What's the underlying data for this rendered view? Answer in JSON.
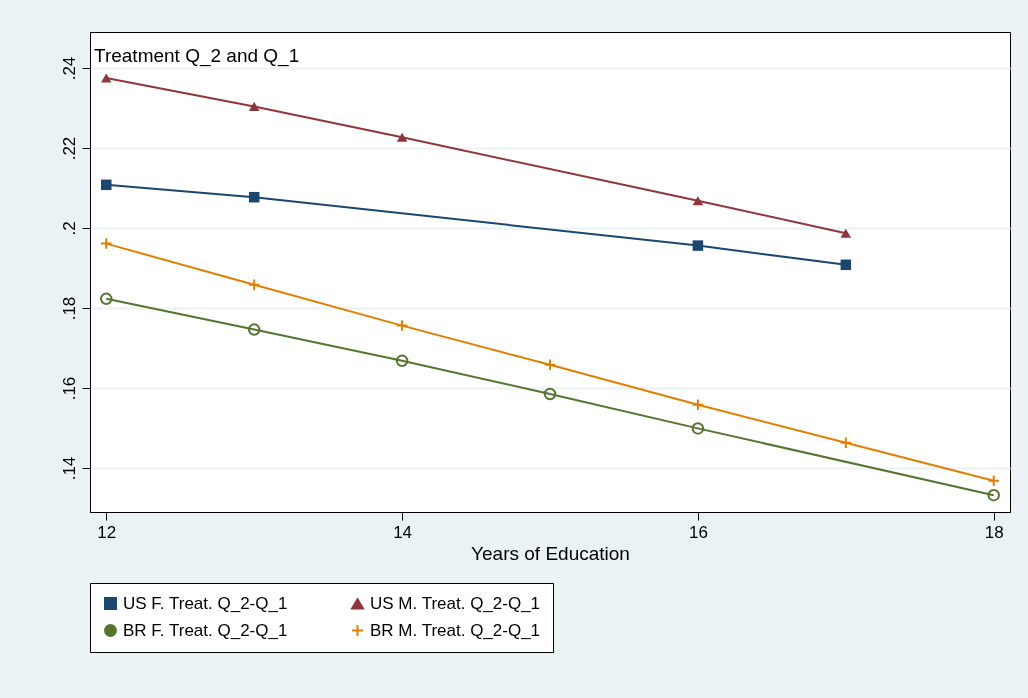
{
  "chart_data": {
    "type": "line",
    "title": "Treatment Q_2 and Q_1",
    "xlabel": "Years of Education",
    "xlim": [
      11.89,
      18.11
    ],
    "xticks": [
      12,
      14,
      16,
      18
    ],
    "ylim": [
      0.129,
      0.249
    ],
    "yticks": [
      {
        "value": 0.14,
        "label": ".14"
      },
      {
        "value": 0.16,
        "label": ".16"
      },
      {
        "value": 0.18,
        "label": ".18"
      },
      {
        "value": 0.2,
        "label": ".2"
      },
      {
        "value": 0.22,
        "label": ".22"
      },
      {
        "value": 0.24,
        "label": ".24"
      }
    ],
    "grid": "y",
    "legend": "bottom",
    "series": [
      {
        "name": "US F. Treat. Q_2-Q_1",
        "color": "#1a476f",
        "marker": "square",
        "x": [
          12,
          13,
          16,
          17
        ],
        "values": [
          0.2108,
          0.2077,
          0.1956,
          0.1908
        ]
      },
      {
        "name": "US M. Treat. Q_2-Q_1",
        "color": "#90353b",
        "marker": "triangle",
        "x": [
          12,
          13,
          14,
          16,
          17
        ],
        "values": [
          0.2375,
          0.2304,
          0.2227,
          0.2068,
          0.1987
        ]
      },
      {
        "name": "BR F. Treat. Q_2-Q_1",
        "color": "#55752f",
        "marker": "circle",
        "x": [
          12,
          13,
          14,
          15,
          16,
          18
        ],
        "values": [
          0.1823,
          0.1746,
          0.1668,
          0.1585,
          0.1499,
          0.1332
        ]
      },
      {
        "name": "BR M. Treat. Q_2-Q_1",
        "color": "#e37e00",
        "marker": "cross",
        "x": [
          12,
          13,
          14,
          15,
          16,
          17,
          18
        ],
        "values": [
          0.1961,
          0.1858,
          0.1756,
          0.1658,
          0.1558,
          0.1463,
          0.1368
        ]
      }
    ]
  }
}
